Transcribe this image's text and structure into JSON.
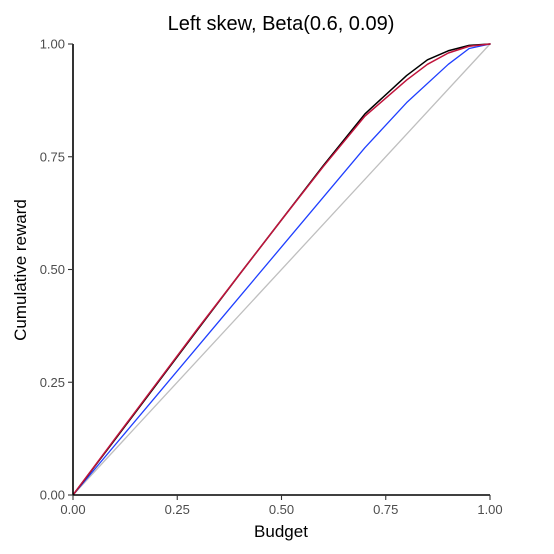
{
  "chart_data": {
    "type": "line",
    "title": "Left skew, Beta(0.6, 0.09)",
    "xlabel": "Budget",
    "ylabel": "Cumulative reward",
    "xlim": [
      0,
      1
    ],
    "ylim": [
      0,
      1
    ],
    "x_ticks": [
      "0.00",
      "0.25",
      "0.50",
      "0.75",
      "1.00"
    ],
    "y_ticks": [
      "0.00",
      "0.25",
      "0.50",
      "0.75",
      "1.00"
    ],
    "grid": false,
    "legend": "none",
    "series": [
      {
        "color": "#bfbfbf",
        "stroke_width": 1.3,
        "points": [
          [
            0,
            0
          ],
          [
            1,
            1
          ]
        ]
      },
      {
        "color": "#1f3fff",
        "stroke_width": 1.3,
        "points": [
          [
            0,
            0
          ],
          [
            0.1,
            0.11
          ],
          [
            0.2,
            0.22
          ],
          [
            0.3,
            0.33
          ],
          [
            0.4,
            0.44
          ],
          [
            0.5,
            0.55
          ],
          [
            0.6,
            0.66
          ],
          [
            0.7,
            0.77
          ],
          [
            0.8,
            0.87
          ],
          [
            0.9,
            0.955
          ],
          [
            0.95,
            0.99
          ],
          [
            1,
            1
          ]
        ]
      },
      {
        "color": "#000000",
        "stroke_width": 1.5,
        "points": [
          [
            0,
            0
          ],
          [
            0.1,
            0.122
          ],
          [
            0.2,
            0.245
          ],
          [
            0.3,
            0.368
          ],
          [
            0.4,
            0.49
          ],
          [
            0.5,
            0.61
          ],
          [
            0.6,
            0.73
          ],
          [
            0.7,
            0.845
          ],
          [
            0.8,
            0.93
          ],
          [
            0.85,
            0.965
          ],
          [
            0.9,
            0.985
          ],
          [
            0.95,
            0.997
          ],
          [
            1,
            1
          ]
        ]
      },
      {
        "color": "#c0143c",
        "stroke_width": 1.5,
        "points": [
          [
            0,
            0
          ],
          [
            0.1,
            0.124
          ],
          [
            0.2,
            0.247
          ],
          [
            0.3,
            0.37
          ],
          [
            0.4,
            0.49
          ],
          [
            0.5,
            0.61
          ],
          [
            0.6,
            0.728
          ],
          [
            0.7,
            0.84
          ],
          [
            0.8,
            0.92
          ],
          [
            0.85,
            0.955
          ],
          [
            0.9,
            0.98
          ],
          [
            0.95,
            0.995
          ],
          [
            1,
            1
          ]
        ]
      }
    ]
  }
}
